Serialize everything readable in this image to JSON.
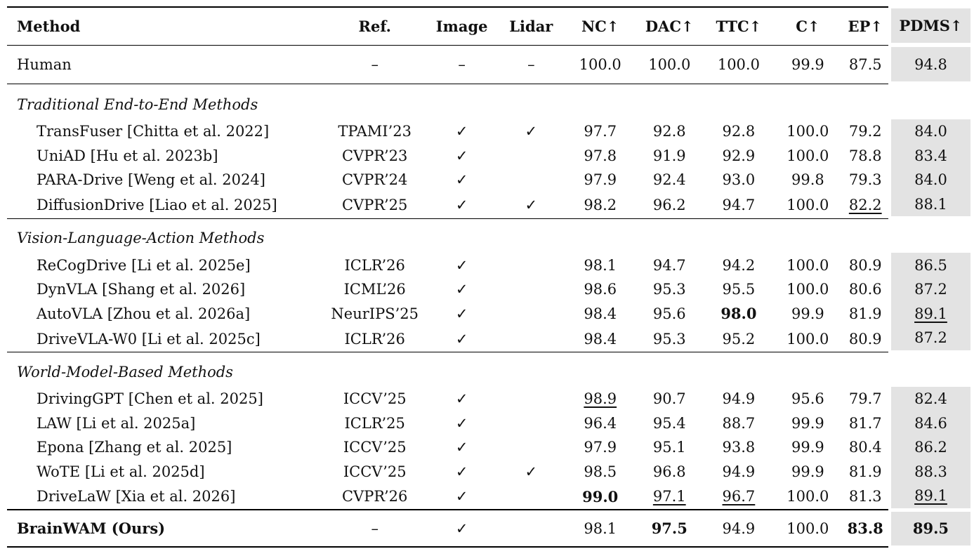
{
  "headers": {
    "method": "Method",
    "ref": "Ref.",
    "image": "Image",
    "lidar": "Lidar",
    "nc": "NC↑",
    "dac": "DAC↑",
    "ttc": "TTC↑",
    "c": "C↑",
    "ep": "EP↑",
    "pdms": "PDMS↑"
  },
  "human": {
    "method": "Human",
    "ref": "–",
    "image": "–",
    "lidar": "–",
    "nc": "100.0",
    "dac": "100.0",
    "ttc": "100.0",
    "c": "99.9",
    "ep": "87.5",
    "pdms": "94.8"
  },
  "sections": [
    {
      "title": "Traditional End-to-End Methods",
      "rows": [
        {
          "method": "TransFuser [Chitta et al. 2022]",
          "ref": "TPAMI’23",
          "image": "✓",
          "lidar": "✓",
          "nc": "97.7",
          "dac": "92.8",
          "ttc": "92.8",
          "c": "100.0",
          "ep": "79.2",
          "pdms": "84.0"
        },
        {
          "method": "UniAD [Hu et al. 2023b]",
          "ref": "CVPR’23",
          "image": "✓",
          "lidar": "",
          "nc": "97.8",
          "dac": "91.9",
          "ttc": "92.9",
          "c": "100.0",
          "ep": "78.8",
          "pdms": "83.4"
        },
        {
          "method": "PARA-Drive [Weng et al. 2024]",
          "ref": "CVPR’24",
          "image": "✓",
          "lidar": "",
          "nc": "97.9",
          "dac": "92.4",
          "ttc": "93.0",
          "c": "99.8",
          "ep": "79.3",
          "pdms": "84.0"
        },
        {
          "method": "DiffusionDrive [Liao et al. 2025]",
          "ref": "CVPR’25",
          "image": "✓",
          "lidar": "✓",
          "nc": "98.2",
          "dac": "96.2",
          "ttc": "94.7",
          "c": "100.0",
          "ep": "82.2",
          "pdms": "88.1"
        }
      ]
    },
    {
      "title": "Vision-Language-Action Methods",
      "rows": [
        {
          "method": "ReCogDrive [Li et al. 2025e]",
          "ref": "ICLR’26",
          "image": "✓",
          "lidar": "",
          "nc": "98.1",
          "dac": "94.7",
          "ttc": "94.2",
          "c": "100.0",
          "ep": "80.9",
          "pdms": "86.5"
        },
        {
          "method": "DynVLA [Shang et al. 2026]",
          "ref": "ICML’26",
          "image": "✓",
          "lidar": "",
          "nc": "98.6",
          "dac": "95.3",
          "ttc": "95.5",
          "c": "100.0",
          "ep": "80.6",
          "pdms": "87.2"
        },
        {
          "method": "AutoVLA [Zhou et al. 2026a]",
          "ref": "NeurIPS’25",
          "image": "✓",
          "lidar": "",
          "nc": "98.4",
          "dac": "95.6",
          "ttc": "98.0",
          "c": "99.9",
          "ep": "81.9",
          "pdms": "89.1"
        },
        {
          "method": "DriveVLA-W0 [Li et al. 2025c]",
          "ref": "ICLR’26",
          "image": "✓",
          "lidar": "",
          "nc": "98.4",
          "dac": "95.3",
          "ttc": "95.2",
          "c": "100.0",
          "ep": "80.9",
          "pdms": "87.2"
        }
      ]
    },
    {
      "title": "World-Model-Based Methods",
      "rows": [
        {
          "method": "DrivingGPT [Chen et al. 2025]",
          "ref": "ICCV’25",
          "image": "✓",
          "lidar": "",
          "nc": "98.9",
          "dac": "90.7",
          "ttc": "94.9",
          "c": "95.6",
          "ep": "79.7",
          "pdms": "82.4"
        },
        {
          "method": "LAW [Li et al. 2025a]",
          "ref": "ICLR’25",
          "image": "✓",
          "lidar": "",
          "nc": "96.4",
          "dac": "95.4",
          "ttc": "88.7",
          "c": "99.9",
          "ep": "81.7",
          "pdms": "84.6"
        },
        {
          "method": "Epona [Zhang et al. 2025]",
          "ref": "ICCV’25",
          "image": "✓",
          "lidar": "",
          "nc": "97.9",
          "dac": "95.1",
          "ttc": "93.8",
          "c": "99.9",
          "ep": "80.4",
          "pdms": "86.2"
        },
        {
          "method": "WoTE [Li et al. 2025d]",
          "ref": "ICCV’25",
          "image": "✓",
          "lidar": "✓",
          "nc": "98.5",
          "dac": "96.8",
          "ttc": "94.9",
          "c": "99.9",
          "ep": "81.9",
          "pdms": "88.3"
        },
        {
          "method": "DriveLaW [Xia et al. 2026]",
          "ref": "CVPR’26",
          "image": "✓",
          "lidar": "",
          "nc": "99.0",
          "dac": "97.1",
          "ttc": "96.7",
          "c": "100.0",
          "ep": "81.3",
          "pdms": "89.1"
        }
      ]
    }
  ],
  "ours": {
    "method": "BrainWAM (Ours)",
    "ref": "–",
    "image": "✓",
    "lidar": "",
    "nc": "98.1",
    "dac": "97.5",
    "ttc": "94.9",
    "c": "100.0",
    "ep": "83.8",
    "pdms": "89.5"
  }
}
